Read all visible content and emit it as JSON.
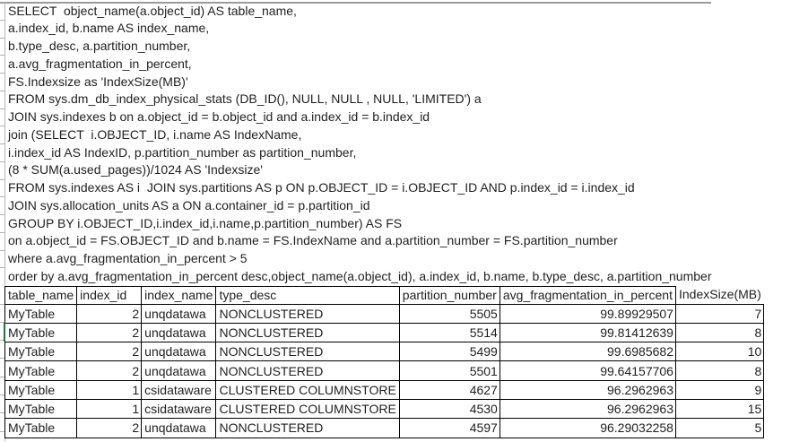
{
  "sql_lines": [
    "SELECT  object_name(a.object_id) AS table_name,",
    "a.index_id, b.name AS index_name,",
    "b.type_desc, a.partition_number,",
    "a.avg_fragmentation_in_percent,",
    "FS.Indexsize as 'IndexSize(MB)'",
    "FROM sys.dm_db_index_physical_stats (DB_ID(), NULL, NULL , NULL, 'LIMITED') a",
    "JOIN sys.indexes b on a.object_id = b.object_id and a.index_id = b.index_id",
    "join (SELECT  i.OBJECT_ID, i.name AS IndexName,",
    "i.index_id AS IndexID, p.partition_number as partition_number,",
    "(8 * SUM(a.used_pages))/1024 AS 'Indexsize'",
    "FROM sys.indexes AS i  JOIN sys.partitions AS p ON p.OBJECT_ID = i.OBJECT_ID AND p.index_id = i.index_id",
    "JOIN sys.allocation_units AS a ON a.container_id = p.partition_id",
    "GROUP BY i.OBJECT_ID,i.index_id,i.name,p.partition_number) AS FS",
    "on a.object_id = FS.OBJECT_ID and b.name = FS.IndexName and a.partition_number = FS.partition_number",
    "where a.avg_fragmentation_in_percent > 5",
    "order by a.avg_fragmentation_in_percent desc,object_name(a.object_id), a.index_id, b.name, b.type_desc, a.partition_number"
  ],
  "results_table": {
    "columns": [
      {
        "key": "table_name",
        "label": "table_name"
      },
      {
        "key": "index_id",
        "label": "index_id"
      },
      {
        "key": "index_name",
        "label": "index_name"
      },
      {
        "key": "type_desc",
        "label": "type_desc"
      },
      {
        "key": "partition_number",
        "label": "partition_number"
      },
      {
        "key": "avg_fragmentation_in_percent",
        "label": "avg_fragmentation_in_percent"
      },
      {
        "key": "index_size_mb",
        "label": "IndexSize(MB)"
      }
    ],
    "rows": [
      [
        "MyTable",
        "2",
        "unqdatawa",
        "NONCLUSTERED",
        "5505",
        "99.89929507",
        "7"
      ],
      [
        "MyTable",
        "2",
        "unqdatawa",
        "NONCLUSTERED",
        "5514",
        "99.81412639",
        "8"
      ],
      [
        "MyTable",
        "2",
        "unqdatawa",
        "NONCLUSTERED",
        "5499",
        "99.6985682",
        "10"
      ],
      [
        "MyTable",
        "2",
        "unqdatawa",
        "NONCLUSTERED",
        "5501",
        "99.64157706",
        "8"
      ],
      [
        "MyTable",
        "1",
        "csidataware",
        "CLUSTERED COLUMNSTORE",
        "4627",
        "96.2962963",
        "9"
      ],
      [
        "MyTable",
        "1",
        "csidataware",
        "CLUSTERED COLUMNSTORE",
        "4530",
        "96.2962963",
        "15"
      ],
      [
        "MyTable",
        "2",
        "unqdatawa",
        "NONCLUSTERED",
        "4597",
        "96.29032258",
        "5"
      ]
    ]
  },
  "colors": {
    "text": "#1f1f1f",
    "table_border": "#000000",
    "gridline": "#b3b3b3",
    "active_cell_green": "#217346"
  }
}
